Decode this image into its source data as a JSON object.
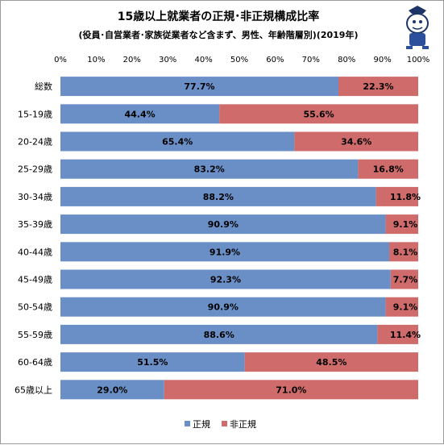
{
  "chart_data": {
    "type": "bar",
    "orientation": "horizontal",
    "stacked": true,
    "title": "15歳以上就業者の正規･非正規構成比率",
    "subtitle": "(役員･自営業者･家族従業者など含まず、男性、年齢階層別)(2019年)",
    "categories": [
      "総数",
      "15-19歳",
      "20-24歳",
      "25-29歳",
      "30-34歳",
      "35-39歳",
      "40-44歳",
      "45-49歳",
      "50-54歳",
      "55-59歳",
      "60-64歳",
      "65歳以上"
    ],
    "series": [
      {
        "name": "正規",
        "color": "#6a8fc7",
        "values": [
          77.7,
          44.4,
          65.4,
          83.2,
          88.2,
          90.9,
          91.9,
          92.3,
          90.9,
          88.6,
          51.5,
          29.0
        ]
      },
      {
        "name": "非正規",
        "color": "#cf6b6b",
        "values": [
          22.3,
          55.6,
          34.6,
          16.8,
          11.8,
          9.1,
          8.1,
          7.7,
          9.1,
          11.4,
          48.5,
          71.0
        ]
      }
    ],
    "value_labels": {
      "正規": [
        "77.7%",
        "44.4%",
        "65.4%",
        "83.2%",
        "88.2%",
        "90.9%",
        "91.9%",
        "92.3%",
        "90.9%",
        "88.6%",
        "51.5%",
        "29.0%"
      ],
      "非正規": [
        "22.3%",
        "55.6%",
        "34.6%",
        "16.8%",
        "11.8%",
        "9.1%",
        "8.1%",
        "7.7%",
        "9.1%",
        "11.4%",
        "48.5%",
        "71.0%"
      ]
    },
    "xlim": [
      0,
      100
    ],
    "x_ticks": [
      "0%",
      "10%",
      "20%",
      "30%",
      "40%",
      "50%",
      "60%",
      "70%",
      "80%",
      "90%",
      "100%"
    ],
    "grid": false,
    "legend_position": "bottom"
  }
}
